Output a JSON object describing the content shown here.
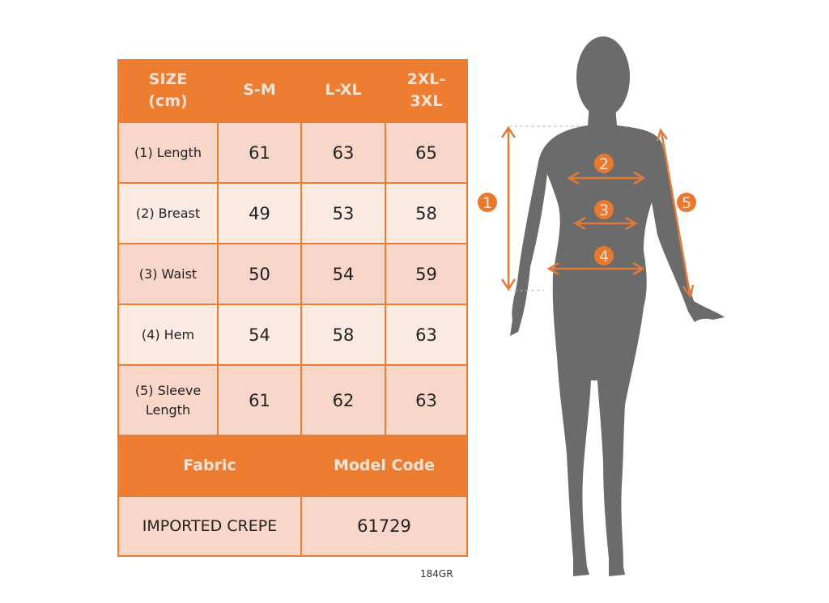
{
  "table": {
    "header": [
      "SIZE\n(cm)",
      "S-M",
      "L-XL",
      "2XL-\n3XL"
    ],
    "rows": [
      {
        "label": "(1) Length",
        "values": [
          "61",
          "63",
          "65"
        ]
      },
      {
        "label": "(2) Breast",
        "values": [
          "49",
          "53",
          "58"
        ]
      },
      {
        "label": "(3) Waist",
        "values": [
          "50",
          "54",
          "59"
        ]
      },
      {
        "label": "(4) Hem",
        "values": [
          "54",
          "58",
          "63"
        ]
      },
      {
        "label": "(5) Sleeve\nLength",
        "values": [
          "61",
          "62",
          "63"
        ]
      }
    ],
    "footer_header": [
      "Fabric",
      "Model Code"
    ],
    "footer_values": [
      "IMPORTED CREPE",
      "61729"
    ]
  },
  "figure": {
    "markers": [
      "1",
      "2",
      "3",
      "4",
      "5"
    ]
  },
  "product_code": "184GR",
  "colors": {
    "accent": "#ED7D31",
    "row_dark": "#F8D6C9",
    "row_light": "#FCEAE3",
    "silhouette": "#6B6B6B"
  }
}
